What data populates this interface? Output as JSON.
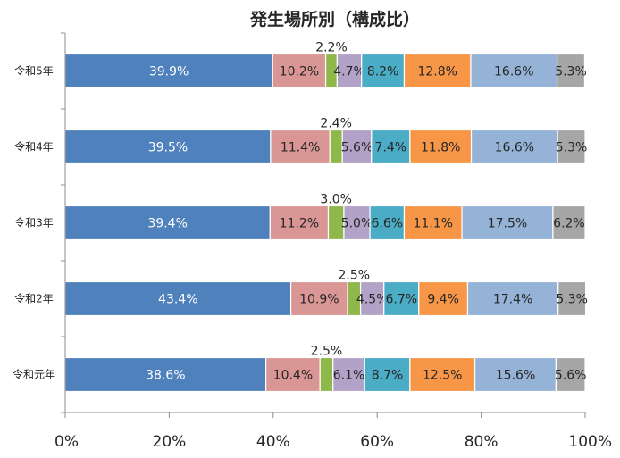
{
  "chart_data": {
    "type": "bar",
    "orientation": "horizontal",
    "stacked": true,
    "title": "発生場所別（構成比）",
    "xlabel": "",
    "ylabel": "",
    "xlim": [
      0,
      100
    ],
    "x_ticks": [
      "0%",
      "20%",
      "40%",
      "60%",
      "80%",
      "100%"
    ],
    "x_tick_values": [
      0,
      20,
      40,
      60,
      80,
      100
    ],
    "grid": false,
    "legend": "none",
    "categories": [
      "令和5年",
      "令和4年",
      "令和3年",
      "令和2年",
      "令和元年"
    ],
    "series": [
      {
        "color": "#4f81bd",
        "label_color": "#ffffff",
        "values": [
          39.9,
          39.5,
          39.4,
          43.4,
          38.6
        ],
        "labels": [
          "39.9%",
          "39.5%",
          "39.4%",
          "43.4%",
          "38.6%"
        ]
      },
      {
        "color": "#d99694",
        "label_color": "#262626",
        "values": [
          10.2,
          11.4,
          11.2,
          10.9,
          10.4
        ],
        "labels": [
          "10.2%",
          "11.4%",
          "11.2%",
          "10.9%",
          "10.4%"
        ]
      },
      {
        "color": "#8fb84a",
        "label_color": "#262626",
        "label_above": true,
        "values": [
          2.2,
          2.4,
          3.0,
          2.5,
          2.5
        ],
        "labels": [
          "2.2%",
          "2.4%",
          "3.0%",
          "2.5%",
          "2.5%"
        ]
      },
      {
        "color": "#b3a2c7",
        "label_color": "#262626",
        "values": [
          4.7,
          5.6,
          5.0,
          4.5,
          6.1
        ],
        "labels": [
          "4.7%",
          "5.6%",
          "5.0%",
          "4.5%",
          "6.1%"
        ]
      },
      {
        "color": "#4bacc6",
        "label_color": "#262626",
        "values": [
          8.2,
          7.4,
          6.6,
          6.7,
          8.7
        ],
        "labels": [
          "8.2%",
          "7.4%",
          "6.6%",
          "6.7%",
          "8.7%"
        ]
      },
      {
        "color": "#f79646",
        "label_color": "#262626",
        "values": [
          12.8,
          11.8,
          11.1,
          9.4,
          12.5
        ],
        "labels": [
          "12.8%",
          "11.8%",
          "11.1%",
          "9.4%",
          "12.5%"
        ]
      },
      {
        "color": "#95b3d7",
        "label_color": "#262626",
        "values": [
          16.6,
          16.6,
          17.5,
          17.4,
          15.6
        ],
        "labels": [
          "16.6%",
          "16.6%",
          "17.5%",
          "17.4%",
          "15.6%"
        ]
      },
      {
        "color": "#a6a6a6",
        "label_color": "#262626",
        "values": [
          5.3,
          5.3,
          6.2,
          5.3,
          5.6
        ],
        "labels": [
          "5.3%",
          "5.3%",
          "6.2%",
          "5.3%",
          "5.6%"
        ]
      }
    ]
  }
}
